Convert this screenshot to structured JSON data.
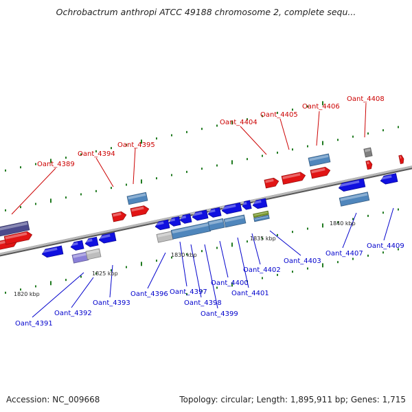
{
  "title": "Ochrobactrum anthropi ATCC 49188 chromosome 2, complete sequ...",
  "footer": {
    "accession": "Accession: NC_009668",
    "topology": "Topology: circular; Length: 1,895,911 bp; Genes: 1,715"
  },
  "scale_labels": [
    "1820 kbp",
    "1825 kbp",
    "1830 kbp",
    "1835 kbp",
    "1840 kbp"
  ],
  "colors": {
    "forward_gene": "#e11414",
    "reverse_gene": "#1010e0",
    "rna_steelblue": "#4f86bc",
    "purple": "#4b4a8c",
    "lavender": "#8a80d8",
    "grey": "#bdbdbd",
    "olive": "#7a9a2e",
    "backbone": "#8c8c8c",
    "forward_label": "#cc0000",
    "reverse_label": "#0000cc"
  },
  "forward_labels": [
    "Oant_4389",
    "Oant_4394",
    "Oant_4395",
    "Oant_4404",
    "Oant_4405",
    "Oant_4406",
    "Oant_4408"
  ],
  "reverse_labels": [
    "Oant_4391",
    "Oant_4392",
    "Oant_4393",
    "Oant_4396",
    "Oant_4397",
    "Oant_4398",
    "Oant_4399",
    "Oant_4400",
    "Oant_4401",
    "Oant_4402",
    "Oant_4403",
    "Oant_4407",
    "Oant_4409"
  ]
}
